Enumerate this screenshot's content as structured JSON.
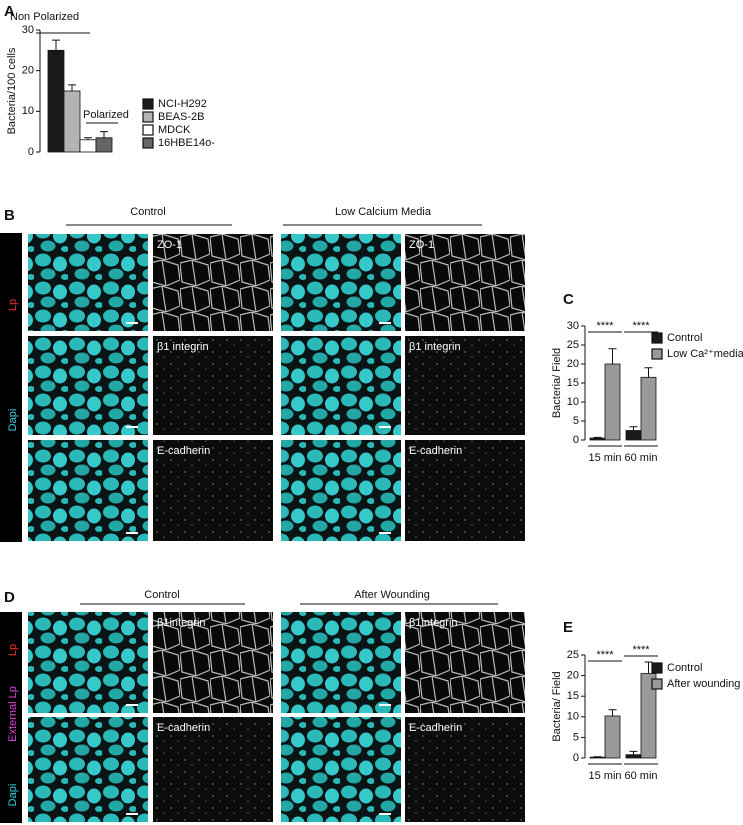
{
  "figure": {
    "panel_letters": [
      "A",
      "B",
      "C",
      "D",
      "E"
    ],
    "panel_b": {
      "column_headers": [
        "Control",
        "Low Calcium Media"
      ],
      "row_labels": [
        "ZO-1",
        "β1 integrin",
        "E-cadherin"
      ],
      "side_labels": [
        "Lp",
        "Dapi"
      ]
    },
    "panel_d": {
      "column_headers": [
        "Control",
        "After Wounding"
      ],
      "row_labels": [
        "β1integrin",
        "E-cadherin"
      ],
      "side_labels": [
        "Lp",
        "External Lp",
        "Dapi"
      ]
    }
  },
  "chart_data": [
    {
      "type": "bar",
      "ylabel": "Bacteria/100 cells",
      "annotations": [
        "Non Polarized",
        "Polarized"
      ],
      "series": [
        {
          "name": "NCI-H292",
          "color": "#1a1a1a",
          "values": [
            25
          ],
          "errors": [
            2.5
          ]
        },
        {
          "name": "BEAS-2B",
          "color": "#b3b3b3",
          "values": [
            15
          ],
          "errors": [
            1.5
          ]
        },
        {
          "name": "MDCK",
          "color": "#ffffff",
          "values": [
            3
          ],
          "errors": [
            0.5
          ]
        },
        {
          "name": "16HBE14o-",
          "color": "#666666",
          "values": [
            3.5
          ],
          "errors": [
            1.5
          ]
        }
      ],
      "ylim": [
        0,
        30
      ],
      "yticks": [
        0,
        10,
        20,
        30
      ]
    },
    {
      "type": "bar",
      "ylabel": "Bacteria/ Field",
      "categories": [
        "15 min",
        "60 min"
      ],
      "annotations": [
        "****",
        "****"
      ],
      "series": [
        {
          "name": "Control",
          "color": "#1a1a1a",
          "values": [
            0.5,
            2.5
          ],
          "errors": [
            0.2,
            1
          ]
        },
        {
          "name": "Low Ca²⁺media",
          "color": "#999999",
          "values": [
            20,
            16.5
          ],
          "errors": [
            4,
            2.5
          ]
        }
      ],
      "ylim": [
        0,
        30
      ],
      "yticks": [
        0,
        5,
        10,
        15,
        20,
        25,
        30
      ]
    },
    {
      "type": "bar",
      "ylabel": "Bacteria/ Field",
      "categories": [
        "15 min",
        "60 min"
      ],
      "annotations": [
        "****",
        "****"
      ],
      "series": [
        {
          "name": "Control",
          "color": "#1a1a1a",
          "values": [
            0.2,
            0.8
          ],
          "errors": [
            0.1,
            0.8
          ]
        },
        {
          "name": "After wounding",
          "color": "#999999",
          "values": [
            10.2,
            20.5
          ],
          "errors": [
            1.5,
            2.8
          ]
        }
      ],
      "ylim": [
        0,
        25
      ],
      "yticks": [
        0,
        5,
        10,
        15,
        20,
        25
      ]
    }
  ]
}
